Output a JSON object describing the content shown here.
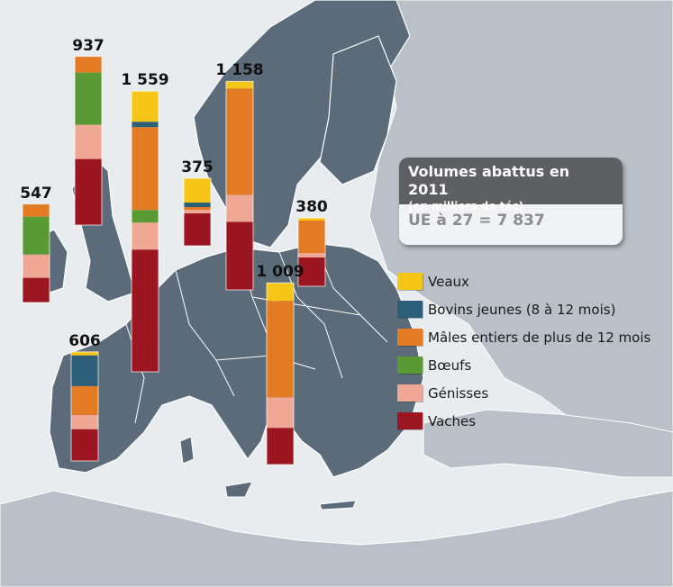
{
  "info": {
    "title": "Volumes abattus en 2011",
    "subtitle": "(en milliers de téc)",
    "total": "UE à 27 = 7 837"
  },
  "legend": [
    {
      "label": "Veaux",
      "color": "#f5c518"
    },
    {
      "label": "Bovins jeunes (8 à 12 mois)",
      "color": "#2b5f7a"
    },
    {
      "label": "Mâles entiers de plus de 12 mois",
      "color": "#e37b24"
    },
    {
      "label": "Bœufs",
      "color": "#5a9a34"
    },
    {
      "label": "Génisses",
      "color": "#f0a896"
    },
    {
      "label": "Vaches",
      "color": "#9c1622"
    }
  ],
  "colors": {
    "sea": "#e9ecef",
    "land_eu": "#5b6b79",
    "land_other": "#b9c0c7",
    "border": "#ffffff"
  },
  "chart_data": {
    "type": "bar",
    "stacked": true,
    "series_order": [
      "Veaux",
      "Bovins jeunes (8 à 12 mois)",
      "Mâles entiers de plus de 12 mois",
      "Bœufs",
      "Génisses",
      "Vaches"
    ],
    "bars": [
      {
        "label": "547",
        "total": 547,
        "values": [
          0,
          0,
          70,
          210,
          130,
          137
        ]
      },
      {
        "label": "937",
        "total": 937,
        "values": [
          0,
          0,
          90,
          290,
          190,
          367
        ]
      },
      {
        "label": "1 559",
        "total": 1559,
        "values": [
          170,
          30,
          460,
          70,
          150,
          679
        ]
      },
      {
        "label": "375",
        "total": 375,
        "values": [
          135,
          25,
          15,
          0,
          20,
          180
        ]
      },
      {
        "label": "1 158",
        "total": 1158,
        "values": [
          40,
          0,
          590,
          0,
          150,
          378
        ]
      },
      {
        "label": "380",
        "total": 380,
        "values": [
          15,
          0,
          180,
          0,
          25,
          160
        ]
      },
      {
        "label": "1 009",
        "total": 1009,
        "values": [
          100,
          0,
          535,
          0,
          170,
          204
        ]
      },
      {
        "label": "606",
        "total": 606,
        "values": [
          20,
          170,
          160,
          0,
          80,
          176
        ]
      }
    ]
  }
}
